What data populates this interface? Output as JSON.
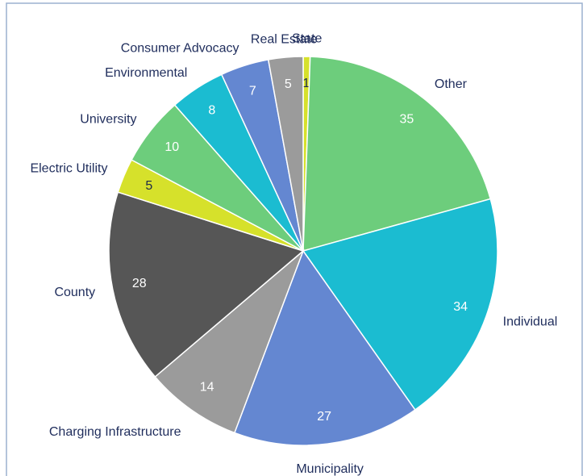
{
  "chart_data": {
    "type": "pie",
    "categories": [
      "State",
      "Other",
      "Individual",
      "Municipality",
      "Charging Infrastructure",
      "County",
      "Electric Utility",
      "University",
      "Environmental",
      "Consumer Advocacy",
      "Real Estate"
    ],
    "values": [
      1,
      35,
      34,
      27,
      14,
      28,
      5,
      10,
      8,
      7,
      5
    ],
    "colors": [
      "#d6e12b",
      "#6dcd7c",
      "#1bbcd1",
      "#6487d1",
      "#9b9b9b",
      "#565656",
      "#d6e12b",
      "#6dcd7c",
      "#1bbcd1",
      "#6487d1",
      "#9b9b9b"
    ]
  }
}
